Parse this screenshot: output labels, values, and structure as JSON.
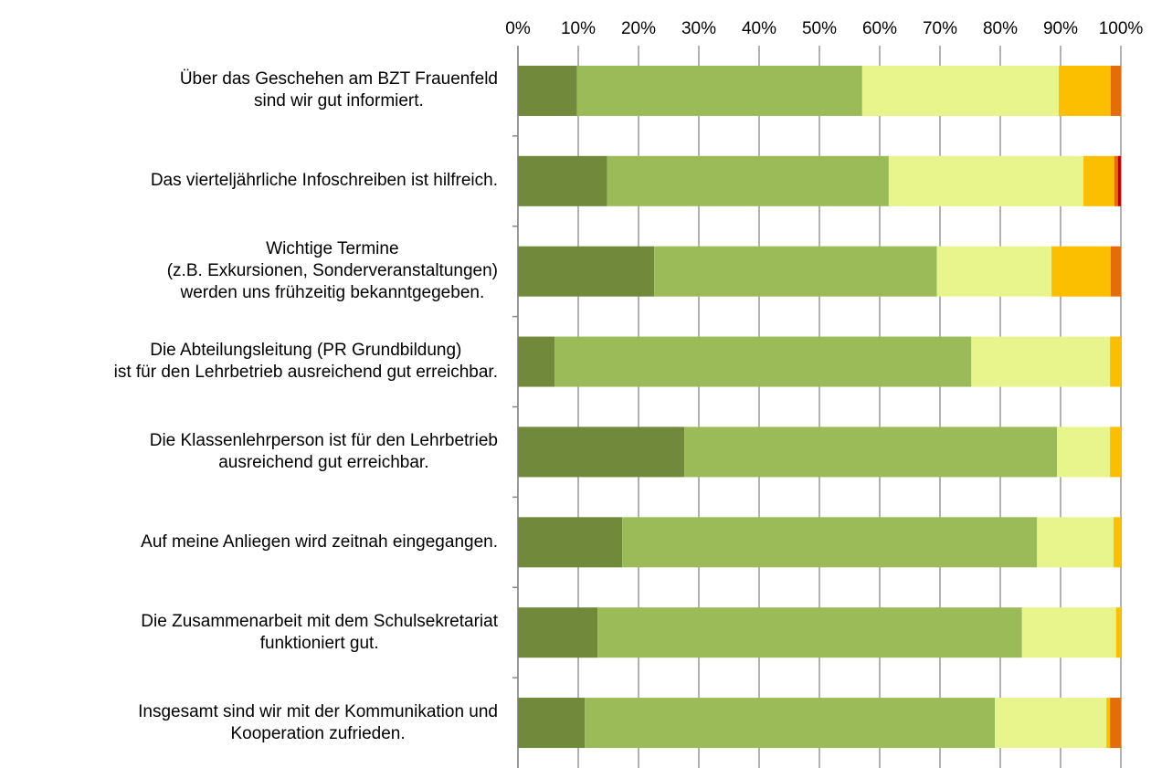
{
  "chart_data": {
    "type": "stacked-barh",
    "categories": [
      "Über das Geschehen am BZT Frauenfeld\nsind wir gut informiert.",
      "Das vierteljährliche Infoschreiben ist hilfreich.",
      "Wichtige Termine\n(z.B. Exkursionen, Sonderveranstaltungen)\nwerden uns frühzeitig bekanntgegeben.",
      "Die Abteilungsleitung (PR Grundbildung)\nist für den Lehrbetrieb ausreichend gut erreichbar.",
      "Die Klassenlehrperson ist für den Lehrbetrieb\nausreichend gut erreichbar.",
      "Auf meine Anliegen wird zeitnah eingegangen.",
      "Die Zusammenarbeit mit dem Schulsekretariat\nfunktioniert gut.",
      "Insgesamt sind wir mit der Kommunikation und\nKooperation zufrieden."
    ],
    "series": [
      {
        "color": "#70893a",
        "values": [
          9.8,
          14.8,
          22.6,
          6.1,
          27.6,
          17.3,
          13.2,
          11.1
        ]
      },
      {
        "color": "#9bbb59",
        "values": [
          47.3,
          46.7,
          46.9,
          69.1,
          61.8,
          68.8,
          70.4,
          68
        ]
      },
      {
        "color": "#e8f48c",
        "values": [
          32.6,
          32.3,
          19,
          23,
          8.8,
          12.7,
          15.6,
          18.5
        ]
      },
      {
        "color": "#fbbf00",
        "values": [
          8.6,
          5.1,
          9.8,
          1.8,
          1.8,
          1.2,
          0.8,
          0.6
        ]
      },
      {
        "color": "#e46c0a",
        "values": [
          1.7,
          0.6,
          1.7,
          0,
          0,
          0,
          0,
          1.8
        ]
      },
      {
        "color": "#c00000",
        "values": [
          0,
          0.5,
          0,
          0,
          0,
          0,
          0,
          0
        ]
      }
    ],
    "xlim": [
      0,
      100
    ],
    "xticks": [
      {
        "value": 0,
        "label": "0%"
      },
      {
        "value": 10,
        "label": "10%"
      },
      {
        "value": 20,
        "label": "20%"
      },
      {
        "value": 30,
        "label": "30%"
      },
      {
        "value": 40,
        "label": "40%"
      },
      {
        "value": 50,
        "label": "50%"
      },
      {
        "value": 60,
        "label": "60%"
      },
      {
        "value": 70,
        "label": "70%"
      },
      {
        "value": 80,
        "label": "80%"
      },
      {
        "value": 90,
        "label": "90%"
      },
      {
        "value": 100,
        "label": "100%"
      }
    ],
    "grid": true
  }
}
